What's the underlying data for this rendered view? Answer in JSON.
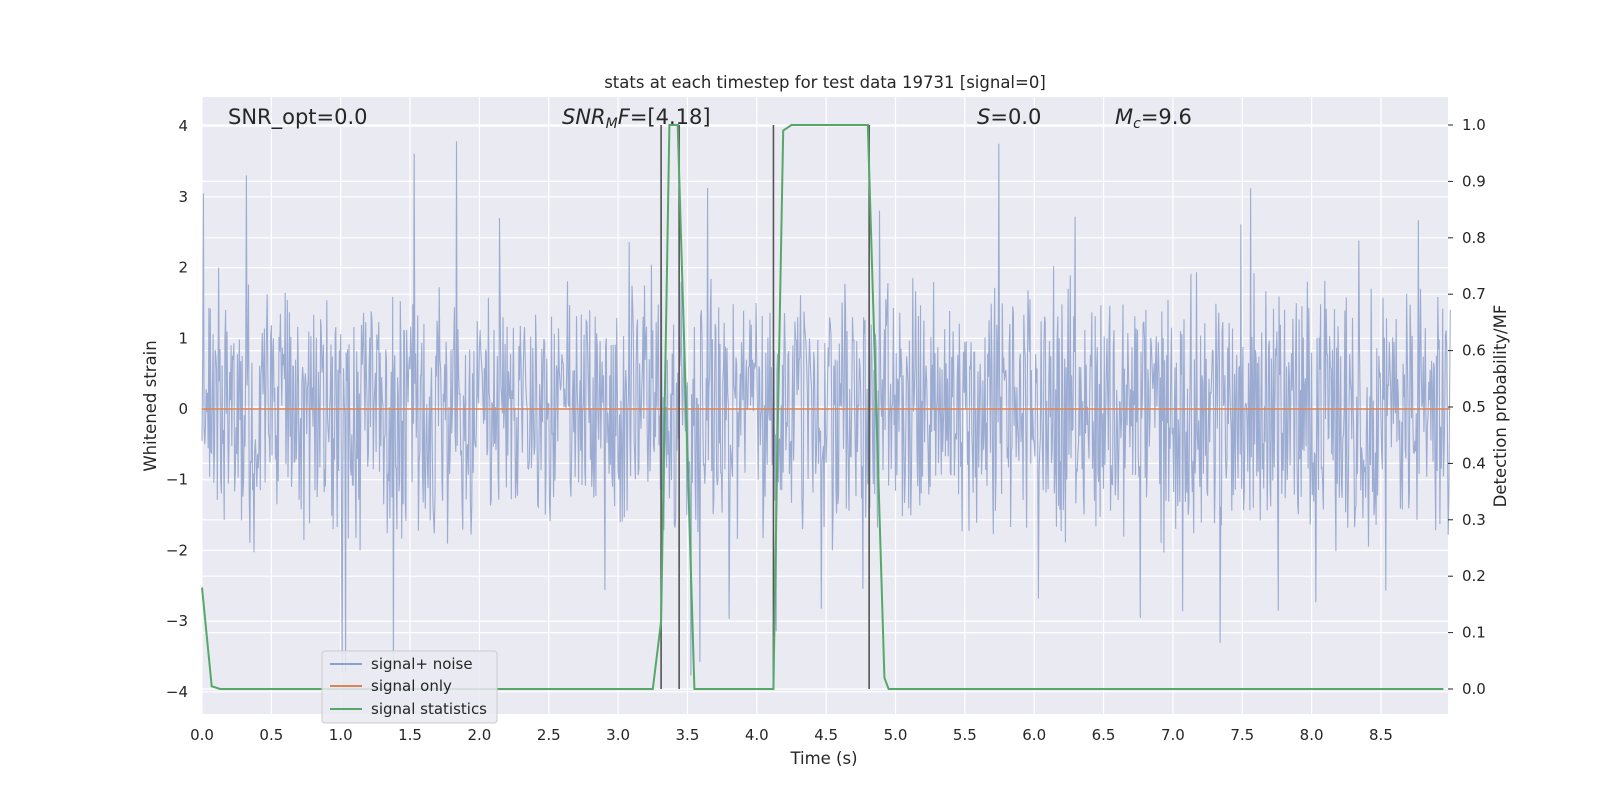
{
  "chart_data": {
    "type": "line",
    "title": "stats at each timestep for test data 19731 [signal=0]",
    "xlabel": "Time (s)",
    "ylabel": "Whitened strain",
    "ylabel_right": "Detection probability/MF",
    "xlim": [
      0.0,
      9.0
    ],
    "ylim": [
      -4.35,
      4.4
    ],
    "ylim_right": [
      -0.05,
      1.04
    ],
    "grid": true,
    "legend_placement": "lower left",
    "xticks": [
      "0.0",
      "0.5",
      "1.0",
      "1.5",
      "2.0",
      "2.5",
      "3.0",
      "3.5",
      "4.0",
      "4.5",
      "5.0",
      "5.5",
      "6.0",
      "6.5",
      "7.0",
      "7.5",
      "8.0",
      "8.5"
    ],
    "yticks": [
      "−4",
      "−3",
      "−2",
      "−1",
      "0",
      "1",
      "2",
      "3",
      "4"
    ],
    "yticks_right": [
      "0.0",
      "0.1",
      "0.2",
      "0.3",
      "0.4",
      "0.5",
      "0.6",
      "0.7",
      "0.8",
      "0.9",
      "1.0"
    ],
    "annotations": {
      "snr_opt": "SNR_opt=0.0",
      "snr_mf_base": "SNR",
      "snr_mf_sub": "M",
      "snr_mf_rest": "F=[4.18]",
      "s_base": "S",
      "s_rest": "=0.0",
      "mc_base": "M",
      "mc_sub": "c",
      "mc_rest": "=9.6"
    },
    "series": [
      {
        "name": "signal+ noise",
        "color": "#8da0cb",
        "noise_envelope": {
          "typical_low": -1.6,
          "typical_high": 1.7,
          "min": -3.95,
          "max": 3.95
        }
      },
      {
        "name": "signal only",
        "color": "#dd8452",
        "x": [
          0.0,
          9.0
        ],
        "y": [
          0.0,
          0.0
        ]
      },
      {
        "name": "signal statistics",
        "color": "#55a868",
        "axis": "right",
        "x": [
          0.0,
          0.07,
          0.13,
          3.25,
          3.31,
          3.37,
          3.43,
          3.55,
          3.58,
          4.12,
          4.15,
          4.19,
          4.25,
          4.8,
          4.92,
          4.95,
          8.95
        ],
        "y": [
          0.18,
          0.005,
          0.0,
          0.0,
          0.12,
          1.0,
          1.0,
          0.0,
          0.0,
          0.0,
          0.45,
          0.99,
          1.0,
          1.0,
          0.02,
          0.0,
          0.0
        ]
      }
    ],
    "vertical_markers": [
      3.31,
      3.44,
      4.12,
      4.81
    ]
  },
  "colors": {
    "plot_bg": "#eaeaf2",
    "grid": "#ffffff",
    "marker_line": "#555555"
  }
}
